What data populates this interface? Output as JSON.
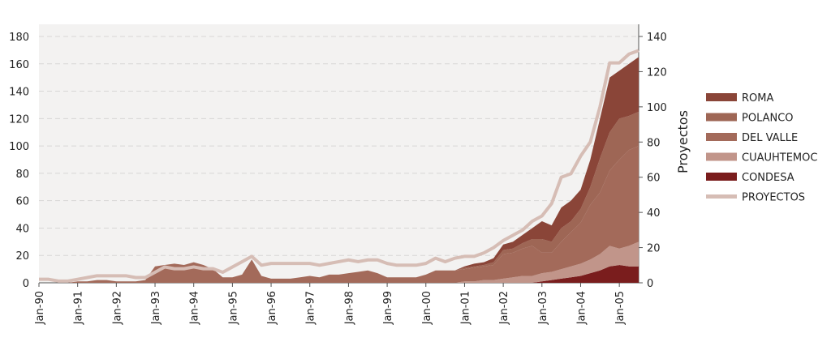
{
  "chart_data": {
    "type": "area",
    "categories": [
      "Jan-90",
      null,
      null,
      null,
      "Jan-91",
      null,
      null,
      null,
      "Jan-92",
      null,
      null,
      null,
      "Jan-93",
      null,
      null,
      null,
      "Jan-94",
      null,
      null,
      null,
      "Jan-95",
      null,
      null,
      null,
      "Jan-96",
      null,
      null,
      null,
      "Jan-97",
      null,
      null,
      null,
      "Jan-98",
      null,
      null,
      null,
      "Jan-99",
      null,
      null,
      null,
      "Jan-00",
      null,
      null,
      null,
      "Jan-01",
      null,
      null,
      null,
      "Jan-02",
      null,
      null,
      null,
      "Jan-03",
      null,
      null,
      null,
      "Jan-04",
      null,
      null,
      null,
      "Jan-05",
      null,
      null
    ],
    "ylim": [
      0,
      180
    ],
    "yticks": [
      0,
      20,
      40,
      60,
      80,
      100,
      120,
      140,
      160,
      180
    ],
    "y2label": "Proyectos",
    "y2lim": [
      0,
      140
    ],
    "y2ticks": [
      0,
      20,
      40,
      60,
      80,
      100,
      120,
      140
    ],
    "grid": true,
    "stacked": true,
    "legend": "right",
    "series": [
      {
        "name": "CONDESA",
        "color": "#7a1d1d",
        "values": [
          0,
          0,
          0,
          0,
          0,
          0,
          0,
          0,
          0,
          0,
          0,
          0,
          0,
          0,
          0,
          0,
          0,
          0,
          0,
          0,
          0,
          0,
          0,
          0,
          0,
          0,
          0,
          0,
          0,
          0,
          0,
          0,
          0,
          0,
          0,
          0,
          0,
          0,
          0,
          0,
          0,
          0,
          0,
          0,
          0,
          0,
          0,
          0,
          0,
          0,
          0,
          0,
          1,
          2,
          3,
          4,
          5,
          7,
          9,
          12,
          13,
          12,
          12
        ]
      },
      {
        "name": "CUAUHTEMOC",
        "color": "#c1958a",
        "values": [
          0,
          0,
          0,
          0,
          0,
          0,
          0,
          0,
          0,
          0,
          0,
          0,
          0,
          0,
          0,
          0,
          0,
          0,
          0,
          0,
          0,
          0,
          0,
          0,
          0,
          0,
          0,
          0,
          0,
          0,
          0,
          0,
          0,
          0,
          0,
          0,
          0,
          0,
          0,
          0,
          0,
          0,
          0,
          0,
          1,
          1,
          2,
          2,
          3,
          4,
          5,
          5,
          6,
          6,
          7,
          8,
          9,
          10,
          12,
          15,
          12,
          15,
          18
        ]
      },
      {
        "name": "DEL VALLE",
        "color": "#a36a5a",
        "values": [
          0,
          0,
          0,
          0,
          1,
          1,
          2,
          2,
          1,
          1,
          1,
          2,
          12,
          13,
          14,
          13,
          15,
          13,
          10,
          4,
          4,
          6,
          17,
          5,
          3,
          3,
          3,
          4,
          5,
          4,
          6,
          6,
          7,
          8,
          9,
          7,
          4,
          4,
          4,
          4,
          6,
          9,
          9,
          9,
          9,
          10,
          10,
          11,
          18,
          18,
          20,
          22,
          15,
          14,
          20,
          25,
          30,
          40,
          45,
          55,
          65,
          70,
          70
        ]
      },
      {
        "name": "POLANCO",
        "color": "#9e6655",
        "values": [
          0,
          0,
          0,
          0,
          0,
          0,
          0,
          0,
          0,
          0,
          0,
          0,
          0,
          0,
          0,
          0,
          0,
          0,
          0,
          0,
          0,
          0,
          0,
          0,
          0,
          0,
          0,
          0,
          0,
          0,
          0,
          0,
          0,
          0,
          0,
          0,
          0,
          0,
          0,
          0,
          0,
          0,
          0,
          0,
          1,
          1,
          1,
          2,
          3,
          3,
          4,
          5,
          10,
          8,
          10,
          8,
          10,
          13,
          25,
          28,
          30,
          25,
          25
        ]
      },
      {
        "name": "ROMA",
        "color": "#8a4538",
        "values": [
          0,
          0,
          0,
          0,
          0,
          0,
          0,
          0,
          0,
          0,
          0,
          0,
          0,
          0,
          0,
          0,
          0,
          0,
          0,
          0,
          0,
          0,
          0,
          0,
          0,
          0,
          0,
          0,
          0,
          0,
          0,
          0,
          0,
          0,
          0,
          0,
          0,
          0,
          0,
          0,
          0,
          0,
          0,
          0,
          1,
          2,
          2,
          3,
          4,
          5,
          6,
          8,
          13,
          12,
          15,
          15,
          14,
          20,
          29,
          40,
          35,
          38,
          40
        ]
      },
      {
        "name": "PROYECTOS",
        "color": "#d6bdb5",
        "type": "line",
        "axis": "y2",
        "values": [
          2,
          2,
          1,
          1,
          2,
          3,
          4,
          4,
          4,
          4,
          3,
          3,
          6,
          9,
          8,
          8,
          9,
          8,
          8,
          6,
          9,
          12,
          15,
          10,
          11,
          11,
          11,
          11,
          11,
          10,
          11,
          12,
          13,
          12,
          13,
          13,
          11,
          10,
          10,
          10,
          11,
          14,
          12,
          14,
          15,
          15,
          17,
          20,
          24,
          27,
          30,
          35,
          38,
          45,
          60,
          62,
          72,
          80,
          100,
          125,
          125,
          130,
          132
        ]
      }
    ]
  }
}
